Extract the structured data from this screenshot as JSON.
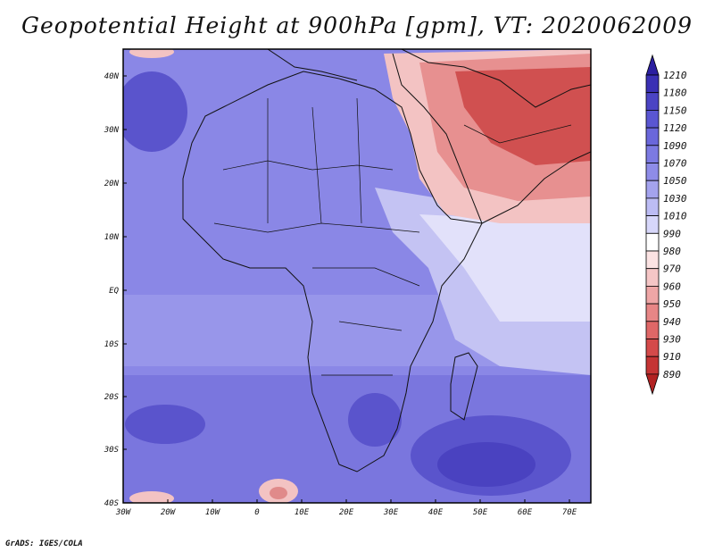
{
  "map": {
    "title": "Geopotential Height at 900hPa [gpm], VT: 2020062009",
    "credit": "GrADS: IGES/COLA",
    "lon_labels": [
      "30W",
      "20W",
      "10W",
      "0",
      "10E",
      "20E",
      "30E",
      "40E",
      "50E",
      "60E",
      "70E"
    ],
    "lat_labels": [
      "40N",
      "30N",
      "20N",
      "10N",
      "EQ",
      "10S",
      "20S",
      "30S",
      "40S"
    ],
    "extent": {
      "lon_min": -30,
      "lon_max": 75,
      "lat_min": -40,
      "lat_max": 45
    }
  },
  "colorbar": {
    "labels": [
      "1210",
      "1180",
      "1150",
      "1120",
      "1090",
      "1070",
      "1050",
      "1030",
      "1010",
      "990",
      "980",
      "970",
      "960",
      "950",
      "940",
      "930",
      "910",
      "890"
    ],
    "colors": [
      "#2b1fa0",
      "#3a30b4",
      "#4b44c4",
      "#5a56d2",
      "#6a67db",
      "#7c7ae2",
      "#8e8ce8",
      "#a4a3ee",
      "#bcbcf4",
      "#d7d7fa",
      "#ffffff",
      "#fbe3e3",
      "#f5c6c6",
      "#eea6a6",
      "#e78686",
      "#df6767",
      "#d44a4a",
      "#c53434",
      "#b22222"
    ]
  }
}
